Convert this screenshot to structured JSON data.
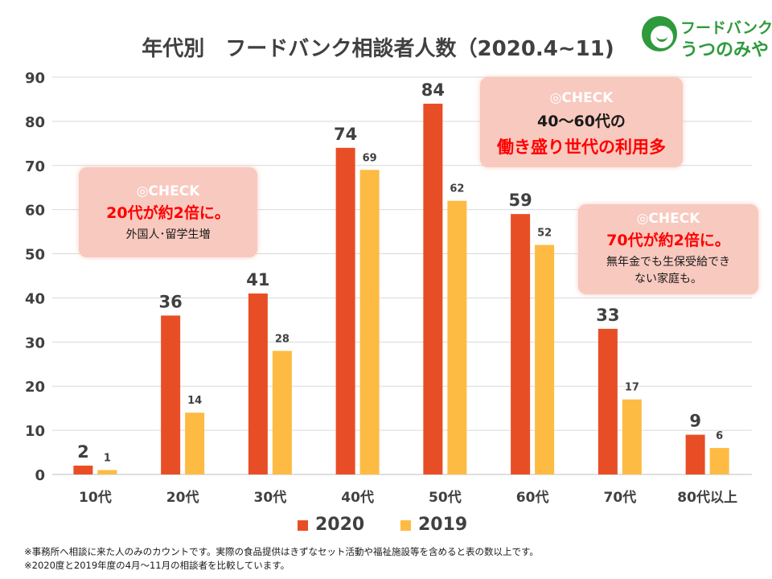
{
  "title": "年代別　フードバンク相談者人数（2020.4~11)",
  "logo": {
    "top": "フードバンク",
    "bottom": "うつのみや"
  },
  "colors": {
    "s2020": "#e84e25",
    "s2019": "#fdbb44",
    "callout_bg": "#f8c9bf",
    "accent_text": "#ff0000",
    "logo_green": "#2e9a3c"
  },
  "callouts": [
    {
      "head": "◎CHECK",
      "main": "20代が約2倍に。",
      "sub": "外国人･留学生増"
    },
    {
      "head": "◎CHECK",
      "line1": "40～60代の",
      "main": "働き盛り世代の利用多"
    },
    {
      "head": "◎CHECK",
      "main": "70代が約2倍に。",
      "sub1": "無年金でも生保受給でき",
      "sub2": "ない家庭も。"
    }
  ],
  "footnotes": [
    "※事務所へ相談に来た人のみのカウントです。実際の食品提供はきずなセット活動や福祉施設等を含めると表の数以上です。",
    "※2020度と2019年度の4月～11月の相談者を比較しています。"
  ],
  "chart_data": {
    "type": "bar",
    "title": "年代別　フードバンク相談者人数（2020.4~11)",
    "categories": [
      "10代",
      "20代",
      "30代",
      "40代",
      "50代",
      "60代",
      "70代",
      "80代以上"
    ],
    "series": [
      {
        "name": "2020",
        "values": [
          2,
          36,
          41,
          74,
          84,
          59,
          33,
          9
        ],
        "color": "#e84e25"
      },
      {
        "name": "2019",
        "values": [
          1,
          14,
          28,
          69,
          62,
          52,
          17,
          6
        ],
        "color": "#fdbb44"
      }
    ],
    "ylim": [
      0,
      90
    ],
    "yticks": [
      0,
      10,
      20,
      30,
      40,
      50,
      60,
      70,
      80,
      90
    ],
    "grid": true,
    "legend": "bottom"
  }
}
